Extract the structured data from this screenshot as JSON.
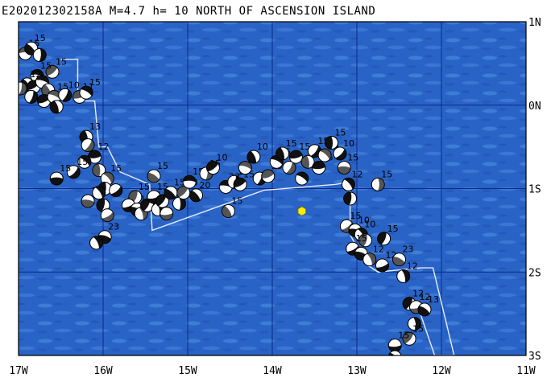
{
  "title": "E202012302158A  M=4.7  h= 10 NORTH OF ASCENSION ISLAND",
  "colors": {
    "ocean": "#2a63c6",
    "ocean_light": "#4f8fe2",
    "ocean_dark": "#1f4fae",
    "grid": "#0a2a88",
    "boundary": "#e6ecf8",
    "epicenter": "#ffee00"
  },
  "lon_labels": [
    "17W",
    "16W",
    "15W",
    "14W",
    "13W",
    "12W",
    "11W"
  ],
  "lat_labels": [
    "1N",
    "0N",
    "1S",
    "2S",
    "3S"
  ],
  "epicenter": {
    "lon": -13.65,
    "lat": -1.27
  },
  "boundary": [
    [
      -16.5,
      0.55
    ],
    [
      -16.3,
      0.55
    ],
    [
      -16.3,
      0.05
    ],
    [
      -16.1,
      0.05
    ],
    [
      -16.05,
      -0.5
    ],
    [
      -15.95,
      -0.5
    ],
    [
      -15.8,
      -0.8
    ],
    [
      -15.45,
      -0.95
    ],
    [
      -15.42,
      -1.5
    ],
    [
      -14.1,
      -1.02
    ],
    [
      -13.25,
      -0.95
    ],
    [
      -13.08,
      -0.92
    ],
    [
      -13.08,
      -1.55
    ],
    [
      -12.9,
      -1.9
    ],
    [
      -12.75,
      -2.0
    ],
    [
      -12.25,
      -1.95
    ],
    [
      -12.1,
      -1.95
    ],
    [
      -11.85,
      -3.0
    ],
    [
      -12.08,
      -3.0
    ],
    [
      -12.3,
      -2.35
    ]
  ],
  "events": [
    {
      "lon": -16.92,
      "lat": 0.62,
      "d": "15"
    },
    {
      "lon": -16.85,
      "lat": 0.68,
      "d": "15"
    },
    {
      "lon": -16.75,
      "lat": 0.6,
      "d": ""
    },
    {
      "lon": -16.6,
      "lat": 0.4,
      "d": "15"
    },
    {
      "lon": -16.78,
      "lat": 0.35,
      "d": "15"
    },
    {
      "lon": -16.9,
      "lat": 0.25,
      "d": "12"
    },
    {
      "lon": -16.98,
      "lat": 0.2,
      "d": ""
    },
    {
      "lon": -16.82,
      "lat": 0.22,
      "d": ""
    },
    {
      "lon": -16.72,
      "lat": 0.28,
      "d": ""
    },
    {
      "lon": -16.65,
      "lat": 0.18,
      "d": ""
    },
    {
      "lon": -16.85,
      "lat": 0.1,
      "d": ""
    },
    {
      "lon": -16.7,
      "lat": 0.05,
      "d": ""
    },
    {
      "lon": -16.58,
      "lat": 0.1,
      "d": "15"
    },
    {
      "lon": -16.55,
      "lat": -0.02,
      "d": ""
    },
    {
      "lon": -16.45,
      "lat": 0.12,
      "d": "10"
    },
    {
      "lon": -16.28,
      "lat": 0.1,
      "d": "11"
    },
    {
      "lon": -16.2,
      "lat": 0.15,
      "d": "15"
    },
    {
      "lon": -16.2,
      "lat": -0.38,
      "d": "13"
    },
    {
      "lon": -16.18,
      "lat": -0.48,
      "d": ""
    },
    {
      "lon": -16.1,
      "lat": -0.62,
      "d": "12"
    },
    {
      "lon": -16.22,
      "lat": -0.68,
      "d": ""
    },
    {
      "lon": -16.05,
      "lat": -0.78,
      "d": ""
    },
    {
      "lon": -16.35,
      "lat": -0.8,
      "d": "15"
    },
    {
      "lon": -16.55,
      "lat": -0.88,
      "d": "15"
    },
    {
      "lon": -15.95,
      "lat": -0.88,
      "d": "15"
    },
    {
      "lon": -15.98,
      "lat": -1.0,
      "d": ""
    },
    {
      "lon": -15.85,
      "lat": -1.02,
      "d": ""
    },
    {
      "lon": -16.18,
      "lat": -1.15,
      "d": "15"
    },
    {
      "lon": -16.05,
      "lat": -1.05,
      "d": ""
    },
    {
      "lon": -16.0,
      "lat": -1.2,
      "d": ""
    },
    {
      "lon": -15.95,
      "lat": -1.32,
      "d": ""
    },
    {
      "lon": -15.98,
      "lat": -1.58,
      "d": "23"
    },
    {
      "lon": -16.08,
      "lat": -1.65,
      "d": ""
    },
    {
      "lon": -15.62,
      "lat": -1.1,
      "d": "15"
    },
    {
      "lon": -15.7,
      "lat": -1.2,
      "d": ""
    },
    {
      "lon": -15.6,
      "lat": -1.25,
      "d": "15"
    },
    {
      "lon": -15.55,
      "lat": -1.3,
      "d": ""
    },
    {
      "lon": -15.48,
      "lat": -1.2,
      "d": "15"
    },
    {
      "lon": -15.4,
      "lat": -1.1,
      "d": "15"
    },
    {
      "lon": -15.4,
      "lat": -0.85,
      "d": "15"
    },
    {
      "lon": -15.35,
      "lat": -1.25,
      "d": ""
    },
    {
      "lon": -15.3,
      "lat": -1.15,
      "d": "10"
    },
    {
      "lon": -15.25,
      "lat": -1.3,
      "d": ""
    },
    {
      "lon": -15.2,
      "lat": -1.05,
      "d": "15"
    },
    {
      "lon": -15.1,
      "lat": -1.18,
      "d": ""
    },
    {
      "lon": -15.05,
      "lat": -1.05,
      "d": "10"
    },
    {
      "lon": -14.98,
      "lat": -0.92,
      "d": "15"
    },
    {
      "lon": -14.9,
      "lat": -1.08,
      "d": "20"
    },
    {
      "lon": -14.78,
      "lat": -0.82,
      "d": "15"
    },
    {
      "lon": -14.7,
      "lat": -0.75,
      "d": "10"
    },
    {
      "lon": -14.55,
      "lat": -0.98,
      "d": "23"
    },
    {
      "lon": -14.52,
      "lat": -1.27,
      "d": "15"
    },
    {
      "lon": -14.45,
      "lat": -0.92,
      "d": "15"
    },
    {
      "lon": -14.38,
      "lat": -0.95,
      "d": "15"
    },
    {
      "lon": -14.32,
      "lat": -0.75,
      "d": "15"
    },
    {
      "lon": -14.22,
      "lat": -0.62,
      "d": "10"
    },
    {
      "lon": -14.15,
      "lat": -0.88,
      "d": ""
    },
    {
      "lon": -14.05,
      "lat": -0.85,
      "d": "15"
    },
    {
      "lon": -13.95,
      "lat": -0.68,
      "d": "15"
    },
    {
      "lon": -13.88,
      "lat": -0.58,
      "d": "15"
    },
    {
      "lon": -13.8,
      "lat": -0.75,
      "d": ""
    },
    {
      "lon": -13.72,
      "lat": -0.62,
      "d": "15"
    },
    {
      "lon": -13.65,
      "lat": -0.88,
      "d": ""
    },
    {
      "lon": -13.58,
      "lat": -0.68,
      "d": "18"
    },
    {
      "lon": -13.5,
      "lat": -0.55,
      "d": "15"
    },
    {
      "lon": -13.45,
      "lat": -0.75,
      "d": "15"
    },
    {
      "lon": -13.38,
      "lat": -0.6,
      "d": "15"
    },
    {
      "lon": -13.3,
      "lat": -0.45,
      "d": "15"
    },
    {
      "lon": -13.2,
      "lat": -0.58,
      "d": "10"
    },
    {
      "lon": -13.15,
      "lat": -0.75,
      "d": "15"
    },
    {
      "lon": -13.1,
      "lat": -0.95,
      "d": "12"
    },
    {
      "lon": -13.08,
      "lat": -1.12,
      "d": ""
    },
    {
      "lon": -13.12,
      "lat": -1.45,
      "d": "15"
    },
    {
      "lon": -13.02,
      "lat": -1.5,
      "d": "10"
    },
    {
      "lon": -12.95,
      "lat": -1.55,
      "d": "10"
    },
    {
      "lon": -12.9,
      "lat": -1.62,
      "d": ""
    },
    {
      "lon": -13.05,
      "lat": -1.72,
      "d": "15"
    },
    {
      "lon": -12.95,
      "lat": -1.78,
      "d": ""
    },
    {
      "lon": -12.85,
      "lat": -1.85,
      "d": "12"
    },
    {
      "lon": -12.68,
      "lat": -1.6,
      "d": "15"
    },
    {
      "lon": -12.7,
      "lat": -1.92,
      "d": "12"
    },
    {
      "lon": -12.5,
      "lat": -1.85,
      "d": "23"
    },
    {
      "lon": -12.45,
      "lat": -2.05,
      "d": "12"
    },
    {
      "lon": -12.38,
      "lat": -2.38,
      "d": "12"
    },
    {
      "lon": -12.3,
      "lat": -2.42,
      "d": "12"
    },
    {
      "lon": -12.2,
      "lat": -2.45,
      "d": "13"
    },
    {
      "lon": -12.32,
      "lat": -2.62,
      "d": ""
    },
    {
      "lon": -12.38,
      "lat": -2.8,
      "d": "15"
    },
    {
      "lon": -12.55,
      "lat": -2.88,
      "d": "15"
    },
    {
      "lon": -12.55,
      "lat": -3.02,
      "d": ""
    },
    {
      "lon": -12.75,
      "lat": -0.95,
      "d": "15"
    }
  ]
}
